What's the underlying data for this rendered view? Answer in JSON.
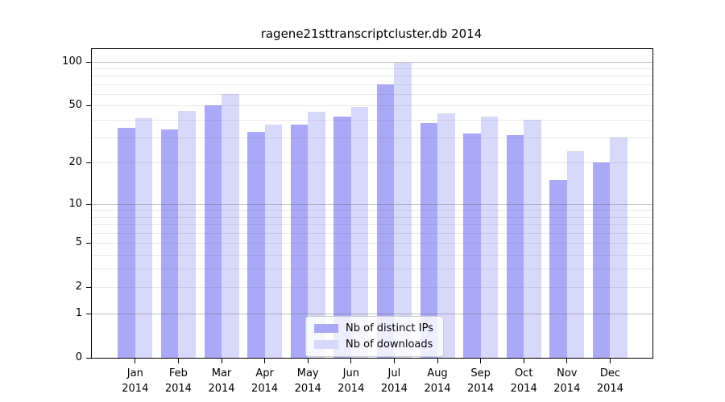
{
  "chart_data": {
    "type": "bar",
    "title": "ragene21sttranscriptcluster.db 2014",
    "categories": [
      "Jan",
      "Feb",
      "Mar",
      "Apr",
      "May",
      "Jun",
      "Jul",
      "Aug",
      "Sep",
      "Oct",
      "Nov",
      "Dec"
    ],
    "year_label": "2014",
    "series": [
      {
        "name": "Nb of distinct IPs",
        "color": "#a9a9f7",
        "values": [
          35,
          34,
          50,
          33,
          37,
          42,
          70,
          38,
          32,
          31,
          15,
          20
        ]
      },
      {
        "name": "Nb of downloads",
        "color": "#d8d8fa",
        "values": [
          41,
          46,
          60,
          37,
          45,
          49,
          98,
          44,
          42,
          40,
          24,
          30
        ]
      }
    ],
    "yscale": "log10(1+x)",
    "ylim": [
      0,
      122
    ],
    "ytick_labels": [
      "100",
      "50",
      "20",
      "10",
      "5",
      "2",
      "1",
      "0"
    ],
    "ytick_values": [
      100,
      50,
      20,
      10,
      5,
      2,
      1,
      0
    ],
    "major_gridlines": [
      1,
      10,
      100
    ],
    "minor_gridlines": [
      2,
      3,
      4,
      5,
      6,
      7,
      8,
      9,
      20,
      30,
      40,
      50,
      60,
      70,
      80,
      90
    ],
    "grid": "on",
    "legend_position": "bottom-center",
    "axis_color": "#000000",
    "background_color": "#ffffff"
  }
}
